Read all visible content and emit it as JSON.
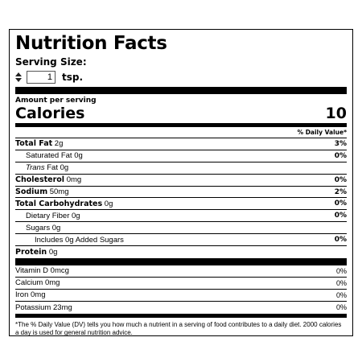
{
  "title": "Nutrition Facts",
  "serving": {
    "label": "Serving Size:",
    "quantity": "1",
    "unit": "tsp."
  },
  "amount_per_serving": "Amount per serving",
  "calories": {
    "label": "Calories",
    "value": "10"
  },
  "daily_value_header": "% Daily Value*",
  "nutrients": [
    {
      "name": "Total Fat",
      "amount": "2g",
      "dv": "3%"
    },
    {
      "name": "Saturated Fat",
      "amount": "0g",
      "dv": "0%"
    },
    {
      "name": "Trans",
      "suffix": "Fat 0g",
      "dv": ""
    },
    {
      "name": "Cholesterol",
      "amount": "0mg",
      "dv": "0%"
    },
    {
      "name": "Sodium",
      "amount": "50mg",
      "dv": "2%"
    },
    {
      "name": "Total Carbohydrates",
      "amount": "0g",
      "dv": "0%"
    },
    {
      "name": "Dietary Fiber",
      "amount": "0g",
      "dv": "0%"
    },
    {
      "name": "Sugars",
      "amount": "0g",
      "dv": ""
    },
    {
      "name": "Includes 0g Added Sugars",
      "amount": "",
      "dv": "0%"
    },
    {
      "name": "Protein",
      "amount": "0g",
      "dv": ""
    }
  ],
  "vitamins": [
    {
      "name": "Vitamin D",
      "amount": "0mcg",
      "dv": "0%"
    },
    {
      "name": "Calcium",
      "amount": "0mg",
      "dv": "0%"
    },
    {
      "name": "Iron",
      "amount": "0mg",
      "dv": "0%"
    },
    {
      "name": "Potassium",
      "amount": "23mg",
      "dv": "0%"
    }
  ],
  "footnote": "*The % Daily Value (DV) tells you how much a nutrient in a serving of food contributes to a daily diet. 2000 calories a day is used for general nutrition advice.",
  "icons": {
    "stepper": "stepper-arrows-icon"
  }
}
